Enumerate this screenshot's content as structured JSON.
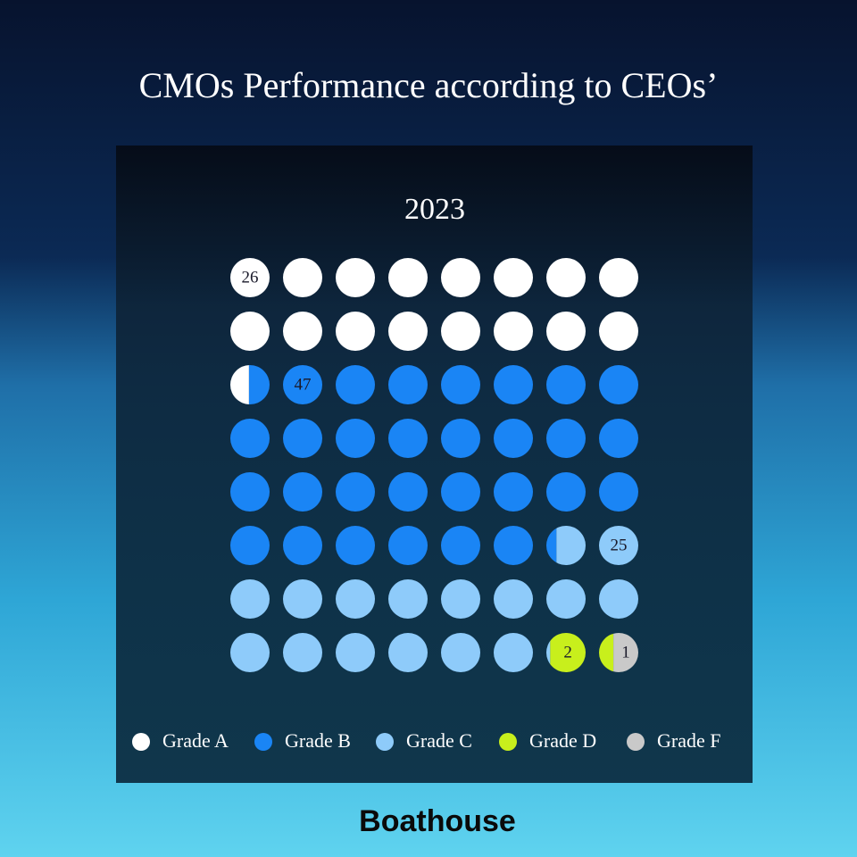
{
  "chart_data": {
    "type": "waffle",
    "title": "CMOs Performance according to CEOs’",
    "subtitle": "2023",
    "categories": [
      "Grade A",
      "Grade B",
      "Grade C",
      "Grade D",
      "Grade F"
    ],
    "values": [
      26,
      47,
      25,
      2,
      1
    ],
    "colors": [
      "#ffffff",
      "#1a85f5",
      "#8ecbfa",
      "#c8ef1c",
      "#c9c9c9"
    ],
    "rows": 8,
    "columns": 8
  },
  "footer": "Boathouse"
}
